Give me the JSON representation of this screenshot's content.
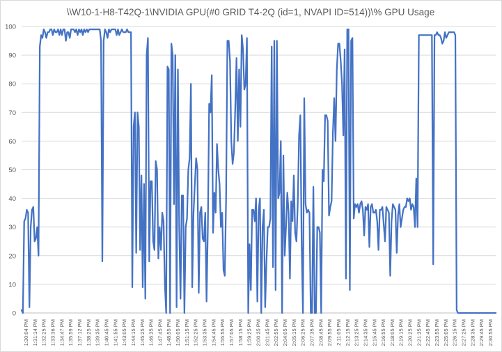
{
  "chart_data": {
    "type": "line",
    "title": "\\\\W10-1-H8-T42Q-1\\NVIDIA GPU(#0 GRID T4-2Q (id=1, NVAPI ID=514))\\% GPU Usage",
    "xlabel": "",
    "ylabel": "",
    "ylim": [
      0,
      100
    ],
    "yticks": [
      0,
      10,
      20,
      30,
      40,
      50,
      60,
      70,
      80,
      90,
      100
    ],
    "grid": true,
    "legend": "none",
    "x_tick_labels": [
      "1:30:04 PM",
      "1:31:14 PM",
      "1:32:25 PM",
      "1:33:36 PM",
      "1:34:47 PM",
      "1:35:59 PM",
      "1:37:12 PM",
      "1:38:25 PM",
      "1:39:35 PM",
      "1:40:45 PM",
      "1:41:55 PM",
      "1:43:05 PM",
      "1:44:15 PM",
      "1:45:25 PM",
      "1:46:35 PM",
      "1:47:45 PM",
      "1:48:55 PM",
      "1:50:05 PM",
      "1:51:15 PM",
      "1:52:25 PM",
      "1:53:35 PM",
      "1:54:45 PM",
      "1:55:55 PM",
      "1:57:05 PM",
      "1:58:15 PM",
      "1:59:25 PM",
      "2:00:35 PM",
      "2:01:45 PM",
      "2:02:55 PM",
      "2:04:05 PM",
      "2:05:15 PM",
      "2:06:25 PM",
      "2:07:35 PM",
      "2:08:45 PM",
      "2:09:55 PM",
      "2:11:05 PM",
      "2:12:15 PM",
      "2:13:25 PM",
      "2:14:35 PM",
      "2:15:45 PM",
      "2:16:55 PM",
      "2:18:05 PM",
      "2:19:15 PM",
      "2:20:25 PM",
      "2:21:35 PM",
      "2:22:45 PM",
      "2:23:55 PM",
      "2:25:05 PM",
      "2:26:15 PM",
      "2:27:25 PM",
      "2:28:35 PM",
      "2:29:45 PM",
      "2:30:55 PM"
    ],
    "series": [
      {
        "color": "#4472c4",
        "values": [
          1,
          0,
          32,
          33,
          36,
          35,
          2,
          30,
          36,
          37,
          25,
          26,
          30,
          20,
          93,
          97,
          96,
          99,
          98,
          96,
          98,
          98,
          99,
          99,
          97,
          99,
          98,
          98,
          99,
          97,
          99,
          97,
          99,
          99,
          95,
          98,
          98,
          96,
          99,
          99,
          99,
          98,
          99,
          97,
          99,
          98,
          99,
          97,
          99,
          98,
          99,
          98,
          99,
          99,
          99,
          99,
          99,
          99,
          99,
          99,
          99,
          95,
          18,
          95,
          99,
          98,
          96,
          99,
          98,
          99,
          99,
          99,
          99,
          97,
          99,
          97,
          98,
          99,
          98,
          98,
          98,
          99,
          98,
          98,
          98,
          9,
          65,
          70,
          21,
          70,
          65,
          22,
          48,
          9,
          45,
          5,
          90,
          96,
          18,
          46,
          46,
          25,
          22,
          53,
          50,
          19,
          30,
          22,
          35,
          32,
          10,
          0,
          86,
          85,
          0,
          94,
          90,
          38,
          90,
          2,
          85,
          30,
          5,
          41,
          41,
          0,
          30,
          33,
          50,
          54,
          80,
          9,
          35,
          45,
          54,
          50,
          7,
          35,
          37,
          26,
          25,
          35,
          4,
          30,
          73,
          70,
          83,
          28,
          42,
          35,
          59,
          50,
          45,
          30,
          35,
          15,
          13,
          40,
          95,
          95,
          88,
          60,
          52,
          56,
          71,
          89,
          60,
          85,
          65,
          97,
          92,
          78,
          80,
          96,
          0,
          24,
          8,
          36,
          36,
          32,
          40,
          4,
          36,
          40,
          0,
          30,
          36,
          2,
          18,
          30,
          30,
          33,
          93,
          16,
          95,
          8,
          95,
          40,
          42,
          60,
          0,
          55,
          20,
          30,
          42,
          35,
          12,
          39,
          32,
          48,
          28,
          25,
          38,
          62,
          69,
          24,
          0,
          75,
          38,
          35,
          36,
          35,
          0,
          0,
          44,
          0,
          0,
          30,
          30,
          28,
          0,
          50,
          46,
          69,
          69,
          67,
          34,
          37,
          39,
          63,
          75,
          60,
          85,
          94,
          94,
          88,
          80,
          62,
          92,
          12,
          99,
          99,
          8,
          95,
          96,
          33,
          38,
          37,
          38,
          35,
          38,
          39,
          36,
          27,
          37,
          36,
          38,
          23,
          37,
          38,
          35,
          35,
          36,
          32,
          22,
          36,
          36,
          37,
          31,
          25,
          37,
          36,
          35,
          13,
          32,
          38,
          37,
          36,
          21,
          34,
          38,
          30,
          33,
          36,
          37,
          37,
          40,
          39,
          40,
          36,
          38,
          37,
          30,
          47,
          30,
          97,
          97,
          97,
          97,
          97,
          97,
          97,
          97,
          97,
          97,
          97,
          17,
          97,
          97,
          98,
          97,
          97,
          96,
          94,
          95,
          98,
          96,
          97,
          98,
          98,
          98,
          98,
          98,
          97,
          1,
          0,
          0,
          0,
          0,
          0,
          0,
          0,
          0,
          0,
          0,
          0,
          0,
          0,
          0,
          0,
          0,
          0,
          0,
          0,
          0,
          0,
          0,
          0,
          0,
          0,
          0,
          0,
          0,
          0,
          0
        ]
      }
    ]
  }
}
